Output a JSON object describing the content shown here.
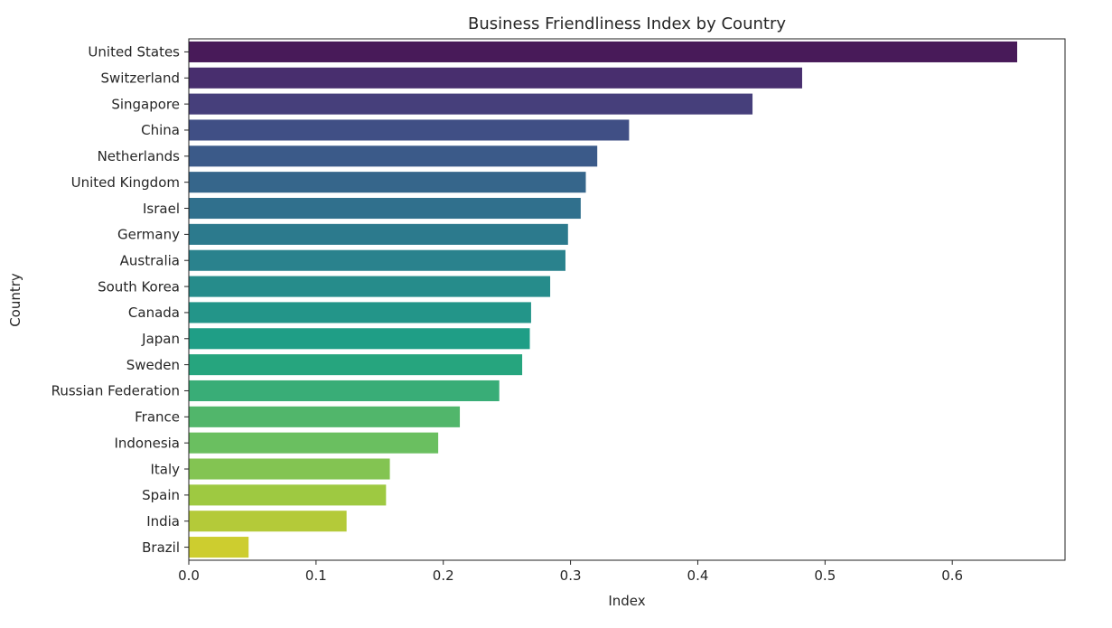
{
  "chart_data": {
    "type": "bar",
    "orientation": "horizontal",
    "title": "Business Friendliness Index by Country",
    "xlabel": "Index",
    "ylabel": "Country",
    "xlim": [
      0,
      0.6886
    ],
    "xticks": [
      0.0,
      0.1,
      0.2,
      0.3,
      0.4,
      0.5,
      0.6
    ],
    "xtick_labels": [
      "0.0",
      "0.1",
      "0.2",
      "0.3",
      "0.4",
      "0.5",
      "0.6"
    ],
    "grid": false,
    "categories": [
      "United States",
      "Switzerland",
      "Singapore",
      "China",
      "Netherlands",
      "United Kingdom",
      "Israel",
      "Germany",
      "Australia",
      "South Korea",
      "Canada",
      "Japan",
      "Sweden",
      "Russian Federation",
      "France",
      "Indonesia",
      "Italy",
      "Spain",
      "India",
      "Brazil"
    ],
    "values": [
      0.651,
      0.482,
      0.443,
      0.346,
      0.321,
      0.312,
      0.308,
      0.298,
      0.296,
      0.284,
      0.269,
      0.268,
      0.262,
      0.244,
      0.213,
      0.196,
      0.158,
      0.155,
      0.124,
      0.047
    ],
    "colors": [
      "#481a59",
      "#482e6e",
      "#463f7b",
      "#404f85",
      "#3b5a89",
      "#36668b",
      "#30708d",
      "#2c7a8d",
      "#2a828d",
      "#268c8b",
      "#239589",
      "#1f9e86",
      "#26a57e",
      "#39ad77",
      "#51b66b",
      "#6abf60",
      "#83c452",
      "#9ec941",
      "#b4ca39",
      "#cdcd2f"
    ]
  }
}
